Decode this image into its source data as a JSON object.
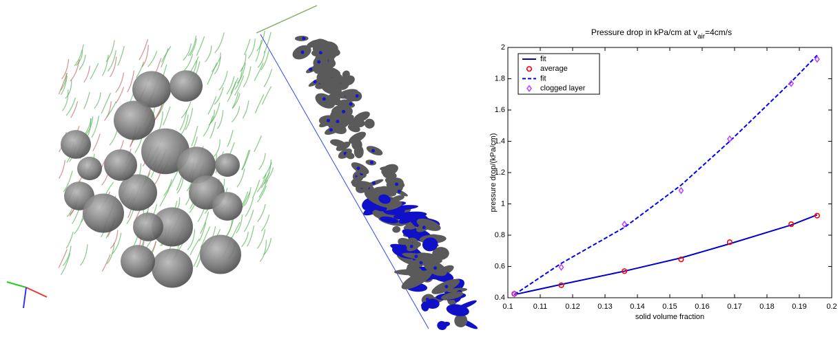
{
  "chart_data": {
    "type": "line",
    "title": [
      "Pressure drop in kPa/cm at v",
      "air",
      "=4cm/s"
    ],
    "x_label": "solid volume fraction",
    "y_label": "pressure drop/(kPa/cm)",
    "x": [
      0.102,
      0.1165,
      0.136,
      0.1535,
      0.1685,
      0.1875,
      0.1955
    ],
    "series": [
      {
        "name": "fit",
        "color": "#0000cc",
        "style": "line",
        "dash": false,
        "values": [
          0.42,
          0.485,
          0.57,
          0.655,
          0.745,
          0.865,
          0.93
        ]
      },
      {
        "name": "average",
        "color": "#ff0000",
        "style": "markers",
        "marker": "circle",
        "values": [
          0.425,
          0.48,
          0.57,
          0.645,
          0.755,
          0.87,
          0.925
        ]
      },
      {
        "name": "fit",
        "color": "#0000ff",
        "style": "line",
        "dash": true,
        "values": [
          0.42,
          0.62,
          0.85,
          1.12,
          1.4,
          1.78,
          1.95
        ]
      },
      {
        "name": "clogged layer",
        "color": "#bf3fff",
        "style": "markers",
        "marker": "diamond",
        "values": [
          0.425,
          0.595,
          0.87,
          1.085,
          1.415,
          1.77,
          1.925
        ]
      }
    ],
    "xlim": [
      0.1,
      0.2
    ],
    "xticks": [
      0.1,
      0.11,
      0.12,
      0.13,
      0.14,
      0.15,
      0.16,
      0.17,
      0.18,
      0.19,
      0.2
    ],
    "ylim": [
      0.4,
      2
    ],
    "yticks": [
      0.4,
      0.6,
      0.8,
      1,
      1.2,
      1.4,
      1.6,
      1.8,
      2
    ],
    "legend": "upper-left"
  }
}
